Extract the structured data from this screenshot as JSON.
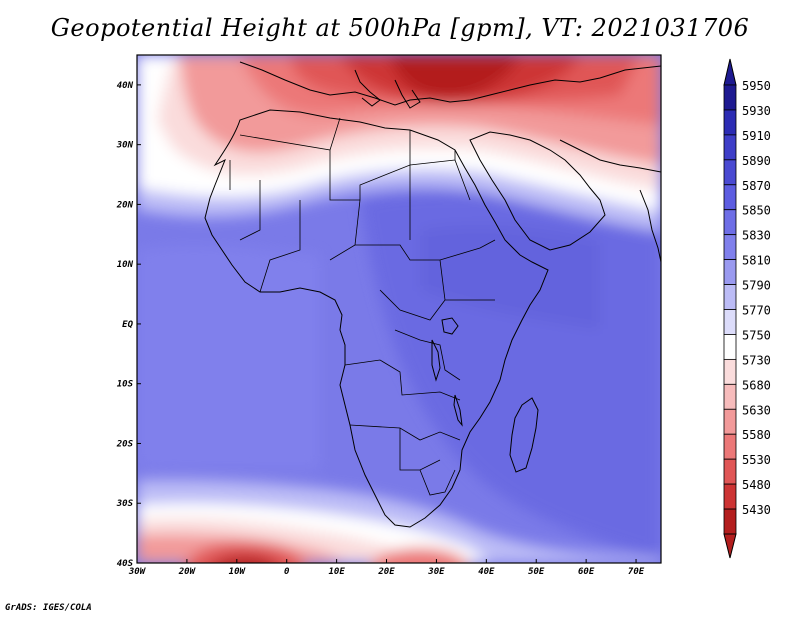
{
  "title": "Geopotential Height at 500hPa [gpm], VT: 2021031706",
  "credit": "GrADS: IGES/COLA",
  "map": {
    "lon_range": [
      -30,
      75
    ],
    "lat_range": [
      -40,
      45
    ],
    "lon_ticks": [
      {
        "value": -30,
        "label": "30W"
      },
      {
        "value": -20,
        "label": "20W"
      },
      {
        "value": -10,
        "label": "10W"
      },
      {
        "value": 0,
        "label": "0"
      },
      {
        "value": 10,
        "label": "10E"
      },
      {
        "value": 20,
        "label": "20E"
      },
      {
        "value": 30,
        "label": "30E"
      },
      {
        "value": 40,
        "label": "40E"
      },
      {
        "value": 50,
        "label": "50E"
      },
      {
        "value": 60,
        "label": "60E"
      },
      {
        "value": 70,
        "label": "70E"
      }
    ],
    "lat_ticks": [
      {
        "value": 40,
        "label": "40N"
      },
      {
        "value": 30,
        "label": "30N"
      },
      {
        "value": 20,
        "label": "20N"
      },
      {
        "value": 10,
        "label": "10N"
      },
      {
        "value": 0,
        "label": "EQ"
      },
      {
        "value": -10,
        "label": "10S"
      },
      {
        "value": -20,
        "label": "20S"
      },
      {
        "value": -30,
        "label": "30S"
      },
      {
        "value": -40,
        "label": "40S"
      }
    ]
  },
  "colorbar": {
    "levels": [
      "5950",
      "5930",
      "5910",
      "5890",
      "5870",
      "5850",
      "5830",
      "5810",
      "5790",
      "5770",
      "5750",
      "5730",
      "5680",
      "5630",
      "5580",
      "5530",
      "5480",
      "5430"
    ],
    "colors": [
      "#1e1a91",
      "#2c2cb4",
      "#3e3ec8",
      "#4a4ad2",
      "#5d5de1",
      "#6e6ee6",
      "#8080ec",
      "#9a9af0",
      "#bcbcf6",
      "#dcdcfa",
      "#ffffff",
      "#fadcdc",
      "#f7bcbc",
      "#f29a9a",
      "#ec7878",
      "#e05656",
      "#cd3434",
      "#b31e1e"
    ]
  }
}
